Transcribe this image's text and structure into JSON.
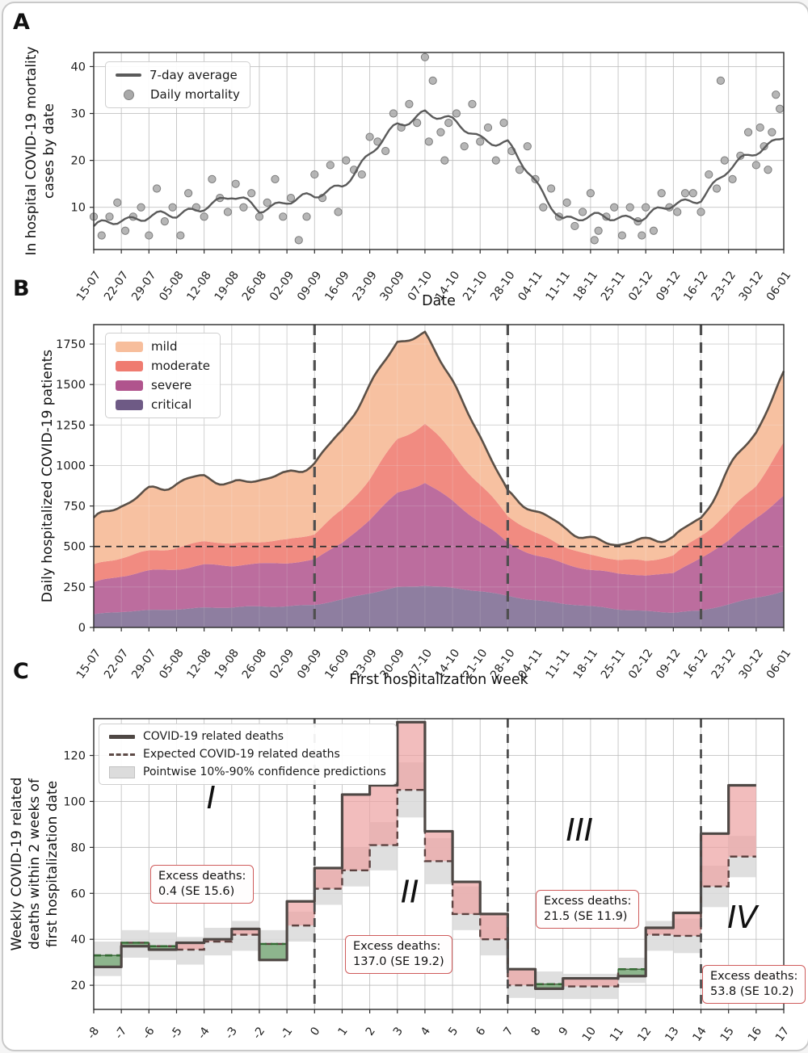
{
  "figure": {
    "panel_a_letter": "A",
    "panel_b_letter": "B",
    "panel_c_letter": "C"
  },
  "panel_a": {
    "ylabel_lines": [
      "In hospital COVID-19 mortality",
      "cases by date"
    ],
    "xlabel": "Date",
    "legend": {
      "line": "7-day average",
      "dots": "Daily mortality"
    }
  },
  "panel_b": {
    "ylabel": "Daily hospitalized COVID-19 patients",
    "xlabel": "First hospitalization week"
  },
  "panel_c": {
    "ylabel_lines": [
      "Weekly COVID-19 related",
      "deaths within 2 weeks of",
      "first hospitalization date"
    ],
    "legend": {
      "observed": "COVID-19 related deaths",
      "expected": "Expected COVID-19 related deaths",
      "band": "Pointwise 10%-90% confidence predictions"
    }
  },
  "chart_data": [
    {
      "type": "line+scatter",
      "panel": "A",
      "x_tick_labels": [
        "15-07",
        "22-07",
        "29-07",
        "05-08",
        "12-08",
        "19-08",
        "26-08",
        "02-09",
        "09-09",
        "16-09",
        "23-09",
        "30-09",
        "07-10",
        "14-10",
        "21-10",
        "28-10",
        "04-11",
        "11-11",
        "18-11",
        "25-11",
        "02-12",
        "09-12",
        "16-12",
        "23-12",
        "30-12",
        "06-01"
      ],
      "xlabel": "Date",
      "ylim": [
        1,
        43
      ],
      "yticks": [
        10,
        20,
        30,
        40
      ],
      "line_color": "#5A5A5A",
      "dot_color": "#A9A9A9",
      "avg_weekly": [
        5.5,
        7.5,
        8.2,
        8.0,
        10.5,
        12.2,
        9.6,
        11.5,
        12.0,
        15.0,
        21.0,
        27.5,
        30.5,
        28.0,
        25.0,
        23.5,
        15.0,
        7.7,
        7.6,
        8.0,
        8.0,
        10.3,
        12.3,
        17.8,
        22.0,
        25.5
      ],
      "scatter_points": [
        [
          0,
          8
        ],
        [
          2,
          4
        ],
        [
          4,
          8
        ],
        [
          6,
          11
        ],
        [
          8,
          5
        ],
        [
          10,
          8
        ],
        [
          12,
          10
        ],
        [
          14,
          4
        ],
        [
          16,
          14
        ],
        [
          18,
          7
        ],
        [
          20,
          10
        ],
        [
          22,
          4
        ],
        [
          24,
          13
        ],
        [
          26,
          10
        ],
        [
          28,
          8
        ],
        [
          30,
          16
        ],
        [
          32,
          12
        ],
        [
          34,
          9
        ],
        [
          36,
          15
        ],
        [
          38,
          10
        ],
        [
          40,
          13
        ],
        [
          42,
          8
        ],
        [
          44,
          11
        ],
        [
          46,
          16
        ],
        [
          48,
          8
        ],
        [
          50,
          12
        ],
        [
          52,
          3
        ],
        [
          54,
          8
        ],
        [
          56,
          17
        ],
        [
          58,
          12
        ],
        [
          60,
          19
        ],
        [
          62,
          9
        ],
        [
          64,
          20
        ],
        [
          66,
          18
        ],
        [
          68,
          17
        ],
        [
          70,
          25
        ],
        [
          72,
          24
        ],
        [
          74,
          22
        ],
        [
          76,
          30
        ],
        [
          78,
          27
        ],
        [
          80,
          32
        ],
        [
          82,
          28
        ],
        [
          84,
          42
        ],
        [
          85,
          24
        ],
        [
          86,
          37
        ],
        [
          88,
          26
        ],
        [
          89,
          20
        ],
        [
          90,
          28
        ],
        [
          92,
          30
        ],
        [
          94,
          23
        ],
        [
          96,
          32
        ],
        [
          98,
          24
        ],
        [
          100,
          27
        ],
        [
          102,
          20
        ],
        [
          104,
          28
        ],
        [
          106,
          22
        ],
        [
          108,
          18
        ],
        [
          110,
          23
        ],
        [
          112,
          16
        ],
        [
          114,
          10
        ],
        [
          116,
          14
        ],
        [
          118,
          8
        ],
        [
          120,
          11
        ],
        [
          122,
          6
        ],
        [
          124,
          9
        ],
        [
          126,
          13
        ],
        [
          127,
          3
        ],
        [
          128,
          5
        ],
        [
          130,
          8
        ],
        [
          132,
          10
        ],
        [
          134,
          4
        ],
        [
          136,
          10
        ],
        [
          138,
          7
        ],
        [
          139,
          4
        ],
        [
          140,
          10
        ],
        [
          142,
          5
        ],
        [
          144,
          13
        ],
        [
          146,
          10
        ],
        [
          148,
          9
        ],
        [
          150,
          13
        ],
        [
          152,
          13
        ],
        [
          154,
          9
        ],
        [
          156,
          17
        ],
        [
          158,
          14
        ],
        [
          159,
          37
        ],
        [
          160,
          20
        ],
        [
          162,
          16
        ],
        [
          164,
          21
        ],
        [
          166,
          26
        ],
        [
          168,
          19
        ],
        [
          169,
          27
        ],
        [
          170,
          23
        ],
        [
          171,
          18
        ],
        [
          172,
          26
        ],
        [
          173,
          34
        ],
        [
          174,
          31
        ]
      ]
    },
    {
      "type": "area",
      "panel": "B",
      "x_tick_labels": [
        "15-07",
        "22-07",
        "29-07",
        "05-08",
        "12-08",
        "19-08",
        "26-08",
        "02-09",
        "09-09",
        "16-09",
        "23-09",
        "30-09",
        "07-10",
        "14-10",
        "21-10",
        "28-10",
        "04-11",
        "11-11",
        "18-11",
        "25-11",
        "02-12",
        "09-12",
        "16-12",
        "23-12",
        "30-12",
        "06-01"
      ],
      "xlabel": "First hospitalization week",
      "ylim": [
        0,
        1870
      ],
      "yticks": [
        0,
        250,
        500,
        750,
        1000,
        1250,
        1500,
        1750
      ],
      "hline": 500,
      "vline_dates": [
        "09-09",
        "28-10",
        "16-12"
      ],
      "total_line_color": "#5B5047",
      "series": [
        {
          "name": "critical",
          "color": "#6E5A85",
          "weekly_values": [
            80,
            95,
            105,
            115,
            122,
            122,
            128,
            132,
            142,
            170,
            210,
            248,
            262,
            242,
            222,
            195,
            170,
            148,
            128,
            112,
            102,
            95,
            100,
            142,
            185,
            225
          ]
        },
        {
          "name": "severe",
          "color": "#B0548D",
          "weekly_values": [
            190,
            220,
            240,
            255,
            265,
            255,
            260,
            268,
            285,
            350,
            450,
            580,
            640,
            540,
            430,
            320,
            280,
            250,
            230,
            215,
            220,
            240,
            335,
            390,
            493,
            583
          ]
        },
        {
          "name": "moderate",
          "color": "#EF7B70",
          "weekly_values": [
            100,
            115,
            125,
            135,
            140,
            135,
            140,
            145,
            155,
            200,
            260,
            330,
            360,
            300,
            230,
            170,
            130,
            110,
            95,
            85,
            85,
            110,
            145,
            170,
            200,
            325
          ]
        },
        {
          "name": "mild",
          "color": "#F7BE9C",
          "weekly_values": [
            270,
            330,
            380,
            390,
            400,
            375,
            385,
            395,
            445,
            490,
            560,
            610,
            560,
            430,
            300,
            150,
            130,
            110,
            105,
            98,
            115,
            120,
            112,
            250,
            337,
            430
          ]
        }
      ]
    },
    {
      "type": "step",
      "panel": "C",
      "xlim": [
        -8,
        17
      ],
      "ylim": [
        9.5,
        136
      ],
      "xticks": [
        -8,
        -7,
        -6,
        -5,
        -4,
        -3,
        -2,
        -1,
        0,
        1,
        2,
        3,
        4,
        5,
        6,
        7,
        8,
        9,
        10,
        11,
        12,
        13,
        14,
        15,
        16,
        17
      ],
      "yticks": [
        20,
        40,
        60,
        80,
        100,
        120
      ],
      "start_week": -8,
      "observed": [
        28,
        37,
        35.5,
        38.5,
        40,
        44.5,
        31,
        56.5,
        71,
        103,
        107,
        134.5,
        87,
        65,
        51,
        27,
        18.5,
        23,
        23,
        24,
        45,
        51.5,
        86,
        107
      ],
      "expected": [
        33,
        38.5,
        37,
        35.5,
        39,
        42,
        38,
        46,
        62,
        70,
        81,
        105,
        74,
        51,
        40,
        20,
        20.5,
        19.5,
        19.5,
        27,
        42,
        41.5,
        63,
        76
      ],
      "band_low": [
        24,
        32,
        31,
        29,
        33,
        35,
        31.5,
        39,
        55,
        63,
        70,
        93,
        64,
        44,
        33,
        14.5,
        14,
        14,
        14,
        21,
        35,
        34,
        54,
        67
      ],
      "band_high": [
        39,
        44,
        43,
        41,
        45,
        48,
        44,
        52,
        70,
        80,
        91,
        117,
        84,
        63,
        50,
        27,
        26,
        25,
        25,
        32,
        48,
        49,
        72,
        85
      ],
      "vlines": [
        0,
        7,
        14
      ],
      "colors": {
        "observed": "#4E4744",
        "expected": "#5D4240",
        "expected_green": "#336B33",
        "excess_red": "#EDA4A4",
        "deficit_green": "#7FAE7F",
        "band": "#D9D9D9"
      },
      "regions": [
        {
          "label": "I",
          "x": -3.75,
          "y": 97
        },
        {
          "label": "II",
          "x": 3.45,
          "y": 56
        },
        {
          "label": "III",
          "x": 9.6,
          "y": 83
        },
        {
          "label": "IV",
          "x": 15.5,
          "y": 45
        }
      ],
      "annotations": [
        {
          "line1": "Excess deaths:",
          "line2": "0.4 (SE 15.6)",
          "x": -5.95,
          "y": 72.5
        },
        {
          "line1": "Excess deaths:",
          "line2": "137.0 (SE 19.2)",
          "x": 1.1,
          "y": 42
        },
        {
          "line1": "Excess deaths:",
          "line2": "21.5 (SE 11.9)",
          "x": 8.0,
          "y": 61.5
        },
        {
          "line1": "Excess deaths:",
          "line2": "53.8 (SE 10.2)",
          "x": 14.05,
          "y": 29
        }
      ]
    }
  ]
}
